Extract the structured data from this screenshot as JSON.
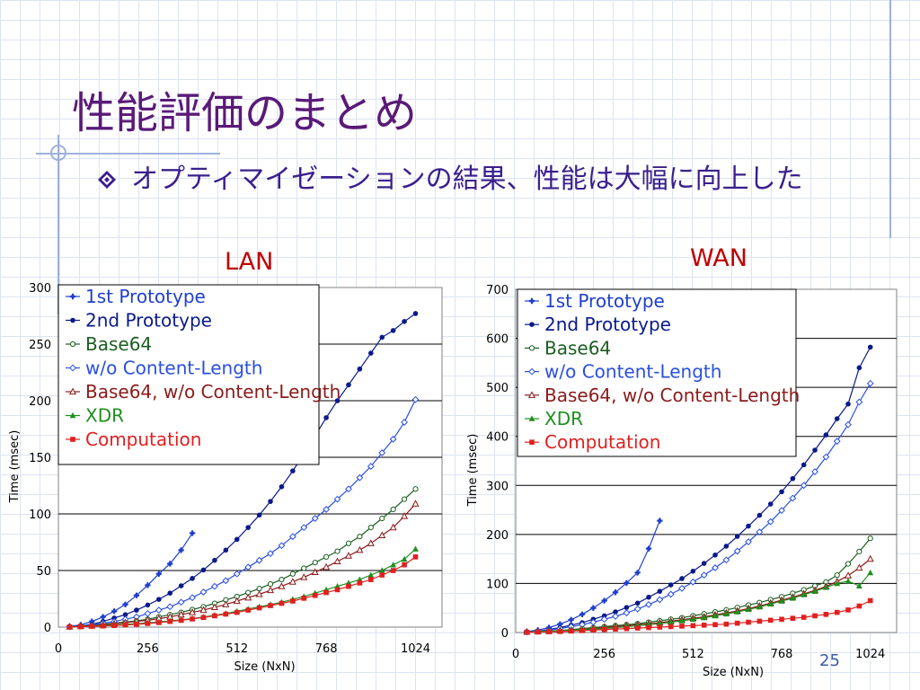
{
  "slide": {
    "title": "性能評価のまとめ",
    "bullet": "オプティマイゼーションの結果、性能は大幅に向上した",
    "page_number": "25"
  },
  "colors": {
    "title": "#5a1a78",
    "bullet": "#3a1f8c",
    "chart_label": "#c00000",
    "decor": "#9fb0dc"
  },
  "chart_data": [
    {
      "type": "line",
      "title": "LAN",
      "xlabel": "Size (NxN)",
      "ylabel": "Time (msec)",
      "xlim": [
        0,
        1100
      ],
      "ylim": [
        0,
        300
      ],
      "xticks": [
        0,
        256,
        512,
        768,
        1024
      ],
      "yticks": [
        0,
        50,
        100,
        150,
        200,
        250,
        300
      ],
      "grid": true,
      "legend_position": "top-left",
      "series": [
        {
          "name": "1st Prototype",
          "color": "#1f3fd0",
          "marker": "plus",
          "x": [
            32,
            64,
            96,
            128,
            160,
            192,
            224,
            256,
            288,
            320,
            352,
            384
          ],
          "y": [
            0.5,
            2,
            5,
            9,
            14,
            20,
            28,
            37,
            47,
            56,
            68,
            83
          ]
        },
        {
          "name": "2nd Prototype",
          "color": "#0a1a8a",
          "marker": "dot",
          "x": [
            32,
            64,
            96,
            128,
            160,
            192,
            224,
            256,
            288,
            320,
            352,
            384,
            416,
            448,
            480,
            512,
            544,
            576,
            608,
            640,
            672,
            704,
            736,
            768,
            800,
            832,
            864,
            896,
            928,
            960,
            992,
            1024
          ],
          "y": [
            0.3,
            1,
            2.5,
            5,
            8,
            11,
            15,
            19.5,
            24.5,
            30,
            36.5,
            43,
            50.5,
            59,
            68,
            77.5,
            88,
            99,
            111,
            124,
            138,
            153,
            169,
            185,
            200,
            214,
            228,
            242,
            256,
            262,
            270,
            277
          ]
        },
        {
          "name": "Base64",
          "color": "#1b5e20",
          "marker": "circle",
          "x": [
            32,
            64,
            96,
            128,
            160,
            192,
            224,
            256,
            288,
            320,
            352,
            384,
            416,
            448,
            480,
            512,
            544,
            576,
            608,
            640,
            672,
            704,
            736,
            768,
            800,
            832,
            864,
            896,
            928,
            960,
            992,
            1024
          ],
          "y": [
            0.3,
            0.8,
            1.5,
            2.5,
            3.5,
            4.5,
            5.5,
            7,
            9,
            11,
            13,
            15.5,
            18,
            21,
            24,
            27,
            30.5,
            34,
            38,
            42,
            47,
            52,
            57,
            62,
            67,
            74,
            80,
            88,
            96,
            104,
            113,
            122
          ]
        },
        {
          "name": "w/o Content-Length",
          "color": "#2a4fe0",
          "marker": "diamond",
          "x": [
            32,
            64,
            96,
            128,
            160,
            192,
            224,
            256,
            288,
            320,
            352,
            384,
            416,
            448,
            480,
            512,
            544,
            576,
            608,
            640,
            672,
            704,
            736,
            768,
            800,
            832,
            864,
            896,
            928,
            960,
            992,
            1024
          ],
          "y": [
            0.3,
            1,
            2,
            3.5,
            5,
            7,
            9,
            12,
            15,
            18,
            22,
            26,
            31,
            36,
            41,
            47,
            53,
            59,
            65,
            72,
            80,
            88,
            96,
            104,
            113,
            122,
            132,
            142,
            154,
            166,
            181,
            201
          ]
        },
        {
          "name": "Base64, w/o Content-Length",
          "color": "#8b1a1a",
          "marker": "triangle-open",
          "x": [
            32,
            64,
            96,
            128,
            160,
            192,
            224,
            256,
            288,
            320,
            352,
            384,
            416,
            448,
            480,
            512,
            544,
            576,
            608,
            640,
            672,
            704,
            736,
            768,
            800,
            832,
            864,
            896,
            928,
            960,
            992,
            1024
          ],
          "y": [
            0.3,
            0.8,
            1.3,
            2,
            3,
            4,
            5,
            6,
            7.5,
            9,
            11,
            13,
            15,
            17.5,
            20,
            23,
            26,
            29,
            32.5,
            36,
            40,
            44,
            48.5,
            53,
            58,
            63,
            68,
            74,
            81,
            88,
            98,
            109
          ]
        },
        {
          "name": "XDR",
          "color": "#1f8f1f",
          "marker": "triangle",
          "x": [
            32,
            64,
            96,
            128,
            160,
            192,
            224,
            256,
            288,
            320,
            352,
            384,
            416,
            448,
            480,
            512,
            544,
            576,
            608,
            640,
            672,
            704,
            736,
            768,
            800,
            832,
            864,
            896,
            928,
            960,
            992,
            1024
          ],
          "y": [
            0.2,
            0.5,
            1,
            1.5,
            2,
            2.5,
            3,
            3.8,
            4.5,
            5.5,
            6.5,
            7.5,
            9,
            10.5,
            12,
            14,
            16,
            18,
            20,
            22,
            24.5,
            27,
            30,
            33,
            36,
            39,
            42,
            46,
            50,
            55,
            60,
            69
          ]
        },
        {
          "name": "Computation",
          "color": "#e02020",
          "marker": "square",
          "x": [
            32,
            64,
            96,
            128,
            160,
            192,
            224,
            256,
            288,
            320,
            352,
            384,
            416,
            448,
            480,
            512,
            544,
            576,
            608,
            640,
            672,
            704,
            736,
            768,
            800,
            832,
            864,
            896,
            928,
            960,
            992,
            1024
          ],
          "y": [
            0.2,
            0.4,
            0.7,
            1,
            1.4,
            1.9,
            2.5,
            3.2,
            4,
            5,
            6,
            7.2,
            8.5,
            10,
            11.5,
            13,
            15,
            17,
            19,
            21,
            23,
            25.5,
            28,
            30.5,
            33,
            36,
            39,
            42,
            46,
            50,
            55,
            62
          ]
        }
      ]
    },
    {
      "type": "line",
      "title": "WAN",
      "xlabel": "Size (NxN)",
      "ylabel": "Time (msec)",
      "xlim": [
        0,
        1100
      ],
      "ylim": [
        0,
        700
      ],
      "xticks": [
        0,
        256,
        512,
        768,
        1024
      ],
      "yticks": [
        0,
        100,
        200,
        300,
        400,
        500,
        600,
        700
      ],
      "grid": true,
      "legend_position": "top-left",
      "series": [
        {
          "name": "1st Prototype",
          "color": "#1f3fd0",
          "marker": "plus",
          "x": [
            32,
            64,
            96,
            128,
            160,
            192,
            224,
            256,
            288,
            320,
            352,
            384,
            416
          ],
          "y": [
            2,
            5,
            10,
            17,
            26,
            37,
            50,
            65,
            82,
            101,
            122,
            171,
            228
          ]
        },
        {
          "name": "2nd Prototype",
          "color": "#0a1a8a",
          "marker": "dot",
          "x": [
            32,
            64,
            96,
            128,
            160,
            192,
            224,
            256,
            288,
            320,
            352,
            384,
            416,
            448,
            480,
            512,
            544,
            576,
            608,
            640,
            672,
            704,
            736,
            768,
            800,
            832,
            864,
            896,
            928,
            960,
            992,
            1024
          ],
          "y": [
            1,
            3,
            6,
            10,
            15,
            20,
            27,
            34,
            42,
            51,
            60,
            72,
            84,
            97,
            110,
            125,
            141,
            158,
            176,
            196,
            217,
            239,
            262,
            287,
            314,
            342,
            372,
            403,
            436,
            466,
            540,
            582
          ]
        },
        {
          "name": "Base64",
          "color": "#1b5e20",
          "marker": "circle",
          "x": [
            32,
            64,
            96,
            128,
            160,
            192,
            224,
            256,
            288,
            320,
            352,
            384,
            416,
            448,
            480,
            512,
            544,
            576,
            608,
            640,
            672,
            704,
            736,
            768,
            800,
            832,
            864,
            896,
            928,
            960,
            992,
            1024
          ],
          "y": [
            1,
            2,
            3,
            4,
            6,
            8,
            10,
            12,
            14,
            16,
            18,
            21,
            24,
            27,
            30,
            34,
            38,
            42,
            46,
            51,
            56,
            61,
            67,
            73,
            80,
            87,
            95,
            103,
            117,
            140,
            165,
            192
          ]
        },
        {
          "name": "w/o Content-Length",
          "color": "#2a4fe0",
          "marker": "diamond",
          "x": [
            32,
            64,
            96,
            128,
            160,
            192,
            224,
            256,
            288,
            320,
            352,
            384,
            416,
            448,
            480,
            512,
            544,
            576,
            608,
            640,
            672,
            704,
            736,
            768,
            800,
            832,
            864,
            896,
            928,
            960,
            992,
            1024
          ],
          "y": [
            1,
            3,
            5,
            8,
            12,
            16,
            21,
            27,
            33,
            40,
            48,
            57,
            67,
            78,
            90,
            103,
            117,
            132,
            148,
            166,
            185,
            205,
            226,
            249,
            274,
            300,
            328,
            358,
            390,
            424,
            470,
            508
          ]
        },
        {
          "name": "Base64, w/o Content-Length",
          "color": "#8b1a1a",
          "marker": "triangle-open",
          "x": [
            32,
            64,
            96,
            128,
            160,
            192,
            224,
            256,
            288,
            320,
            352,
            384,
            416,
            448,
            480,
            512,
            544,
            576,
            608,
            640,
            672,
            704,
            736,
            768,
            800,
            832,
            864,
            896,
            928,
            960,
            992,
            1024
          ],
          "y": [
            1,
            2,
            3,
            4,
            5,
            6,
            8,
            10,
            12,
            14,
            16,
            18,
            20,
            23,
            26,
            29,
            32,
            36,
            40,
            44,
            49,
            54,
            60,
            66,
            72,
            79,
            86,
            94,
            104,
            116,
            132,
            150
          ]
        },
        {
          "name": "XDR",
          "color": "#1f8f1f",
          "marker": "triangle",
          "x": [
            32,
            64,
            96,
            128,
            160,
            192,
            224,
            256,
            288,
            320,
            352,
            384,
            416,
            448,
            480,
            512,
            544,
            576,
            608,
            640,
            672,
            704,
            736,
            768,
            800,
            832,
            864,
            896,
            928,
            960,
            992,
            1024
          ],
          "y": [
            1,
            2,
            3,
            4,
            5,
            6,
            7,
            8,
            10,
            12,
            14,
            16,
            18,
            21,
            24,
            27,
            30,
            34,
            38,
            42,
            47,
            52,
            58,
            64,
            70,
            77,
            84,
            92,
            100,
            105,
            95,
            122
          ]
        },
        {
          "name": "Computation",
          "color": "#e02020",
          "marker": "square",
          "x": [
            32,
            64,
            96,
            128,
            160,
            192,
            224,
            256,
            288,
            320,
            352,
            384,
            416,
            448,
            480,
            512,
            544,
            576,
            608,
            640,
            672,
            704,
            736,
            768,
            800,
            832,
            864,
            896,
            928,
            960,
            992,
            1024
          ],
          "y": [
            0.5,
            1,
            1.5,
            2,
            3,
            4,
            5,
            6,
            7,
            8,
            9,
            10,
            11,
            12,
            13,
            14,
            15,
            16,
            17,
            19,
            21,
            23,
            25,
            27,
            29,
            31,
            34,
            37,
            41,
            46,
            54,
            65
          ]
        }
      ]
    }
  ]
}
